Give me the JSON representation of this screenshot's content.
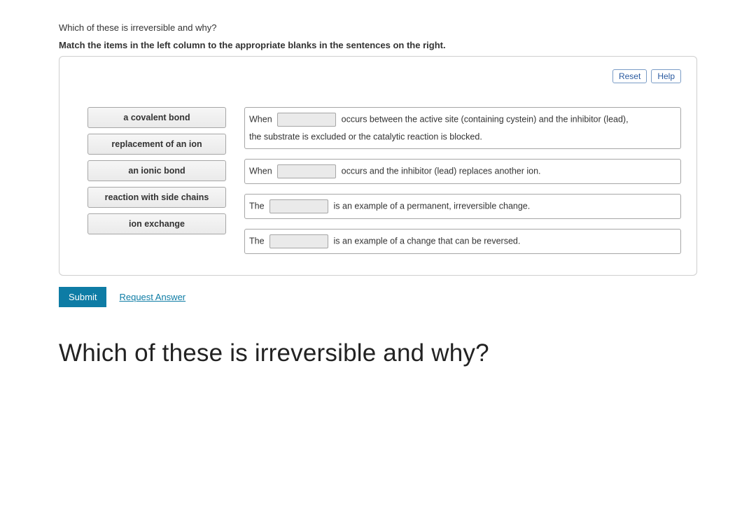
{
  "question": {
    "title": "Which of these is irreversible and why?",
    "instruction": "Match the items in the left column to the appropriate blanks in the sentences on the right."
  },
  "buttons": {
    "reset": "Reset",
    "help": "Help",
    "submit": "Submit",
    "request_answer": "Request Answer"
  },
  "drag_items": [
    "a covalent bond",
    "replacement of an ion",
    "an ionic bond",
    "reaction with side chains",
    "ion exchange"
  ],
  "sentences": {
    "s1": {
      "p1": "When",
      "p2": "occurs between the active site (containing cystein) and the inhibitor (lead),",
      "p3": "the substrate is excluded or the catalytic reaction is blocked."
    },
    "s2": {
      "p1": "When",
      "p2": "occurs and the inhibitor (lead) replaces another ion."
    },
    "s3": {
      "p1": "The",
      "p2": "is an example of a permanent, irreversible change."
    },
    "s4": {
      "p1": "The",
      "p2": "is an example of a change that can be reversed."
    }
  },
  "heading": "Which of these is irreversible and why?",
  "colors": {
    "accent": "#0e7ca5",
    "border": "#a6a6a6",
    "outline_btn_border": "#7a9cc6",
    "outline_btn_text": "#2a5aa0",
    "slot_bg": "#eaeaea"
  }
}
